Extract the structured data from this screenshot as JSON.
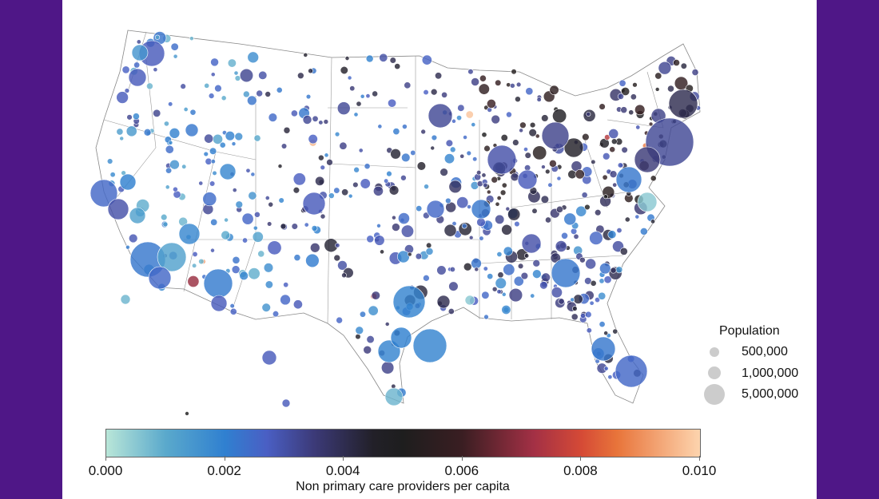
{
  "colors": {
    "frame": "#4f1787",
    "background": "#ffffff",
    "state_border": "#888888",
    "legend_circle": "#cccccc"
  },
  "colormap": {
    "stops": [
      "#b9e6d8",
      "#5aa9cc",
      "#3080d0",
      "#4a5fc4",
      "#3c3a78",
      "#222028",
      "#1e1e1e",
      "#3a1e22",
      "#a33045",
      "#d54a36",
      "#e8743a",
      "#fdd4ae"
    ],
    "range": [
      0,
      0.01
    ],
    "ticks": [
      "0.000",
      "0.002",
      "0.004",
      "0.006",
      "0.008",
      "0.010"
    ],
    "title": "Non primary care providers per capita"
  },
  "size_legend": {
    "title": "Population",
    "entries": [
      {
        "label": "500,000",
        "value": 500000
      },
      {
        "label": "1,000,000",
        "value": 1000000
      },
      {
        "label": "5,000,000",
        "value": 5000000
      }
    ]
  }
}
